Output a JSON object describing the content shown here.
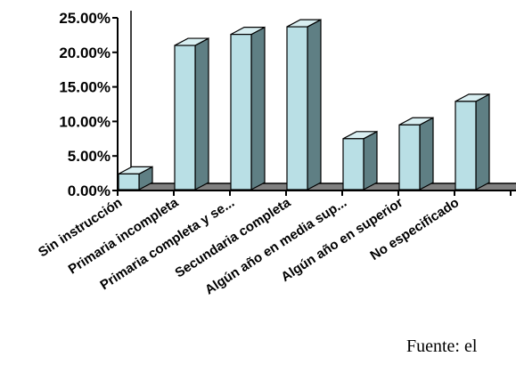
{
  "chart_data": {
    "type": "bar",
    "categories": [
      "Sin instrucción",
      "Primaria incompleta",
      "Primaria completa y se...",
      "Secundaria completa",
      "Algún año en media sup...",
      "Algún año en superior",
      "No especificado",
      ""
    ],
    "values": [
      2.4,
      21.0,
      22.6,
      23.7,
      7.5,
      9.5,
      12.9,
      0
    ],
    "y_tick_labels": [
      "0.00%",
      "5.00%",
      "10.00%",
      "15.00%",
      "20.00%",
      "25.00%"
    ],
    "ylim": [
      0,
      25
    ],
    "grid": false,
    "legend": "none",
    "colors": {
      "bar_front": "#b9dfe5",
      "bar_side": "#5f7f84",
      "bar_top": "#d8eef1",
      "floor": "#808080",
      "outline": "#000000"
    }
  },
  "source_note": "Fuente: el"
}
